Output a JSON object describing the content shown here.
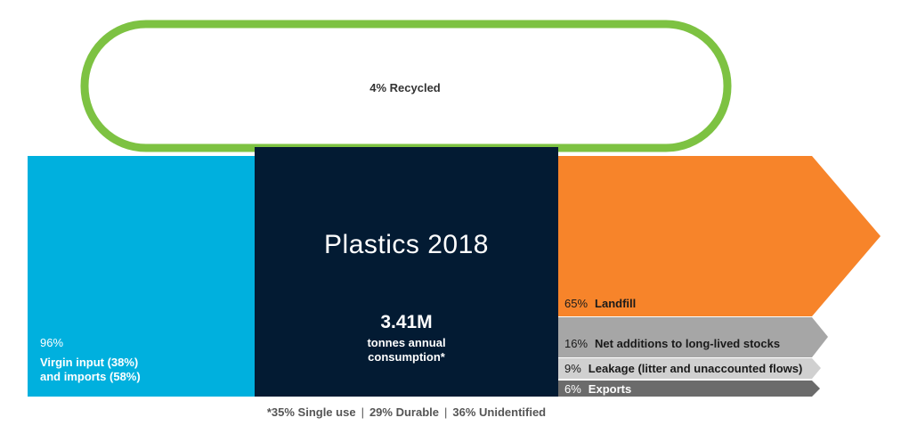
{
  "colors": {
    "recycled_loop": "#7dc242",
    "input": "#00b0de",
    "center": "#031b33",
    "landfill": "#f7842a",
    "stocks": "#a6a6a6",
    "leakage": "#d0d0d0",
    "exports": "#6b6b6b"
  },
  "recycled": {
    "label": "4% Recycled"
  },
  "input": {
    "percent": "96%",
    "description": "Virgin input (38%)\nand imports (58%)"
  },
  "center": {
    "title": "Plastics 2018",
    "amount": "3.41M",
    "unit": "tonnes annual\nconsumption*"
  },
  "outputs": [
    {
      "id": "landfill",
      "percent": "65%",
      "label": "Landfill"
    },
    {
      "id": "stocks",
      "percent": "16%",
      "label": "Net additions to long-lived stocks"
    },
    {
      "id": "leakage",
      "percent": "9%",
      "label": "Leakage (litter and unaccounted flows)"
    },
    {
      "id": "exports",
      "percent": "6%",
      "label": "Exports"
    }
  ],
  "footnote": {
    "single_use": "*35% Single use",
    "durable": "29% Durable",
    "unidentified": "36% Unidentified",
    "separator": "|"
  }
}
